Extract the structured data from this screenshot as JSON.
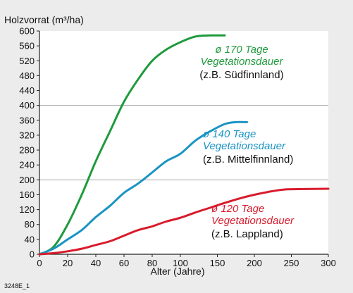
{
  "figure": {
    "code": "3248E_1"
  },
  "chart_data": {
    "type": "line",
    "title": "",
    "ylabel": "Holzvorrat (m³/ha)",
    "xlabel": "Alter (Jahre)",
    "xlim": [
      0,
      300
    ],
    "ylim": [
      0,
      600
    ],
    "x_ticks": [
      0,
      20,
      40,
      60,
      80,
      100,
      150,
      200,
      250,
      300
    ],
    "x_tick_labels": [
      "0",
      "20",
      "40",
      "60",
      "80",
      "100",
      "150",
      "200",
      "250",
      "300"
    ],
    "y_ticks": [
      0,
      40,
      80,
      120,
      160,
      200,
      240,
      280,
      320,
      360,
      400,
      440,
      480,
      520,
      560,
      600
    ],
    "y_tick_labels": [
      "0",
      "40",
      "80",
      "120",
      "160",
      "200",
      "240",
      "280",
      "320",
      "360",
      "400",
      "440",
      "480",
      "520",
      "560",
      "600"
    ],
    "grid": {
      "horizontal_lines_at": [
        200,
        400
      ]
    },
    "x_scale": "piecewise: 0-100 expanded, 100-300 compressed",
    "series": [
      {
        "name": "ø 170 Tage Vegetationsdauer",
        "note": "(z.B. Südfinnland)",
        "color": "#1f9a3d",
        "x": [
          0,
          10,
          20,
          30,
          40,
          50,
          60,
          70,
          80,
          90,
          100,
          120,
          140,
          160
        ],
        "y": [
          0,
          20,
          80,
          160,
          250,
          330,
          410,
          470,
          520,
          550,
          570,
          585,
          588,
          588
        ]
      },
      {
        "name": "ø 140 Tage Vegetationsdauer",
        "note": "(z.B. Mittelfinnland)",
        "color": "#1a94c4",
        "x": [
          0,
          10,
          20,
          30,
          40,
          50,
          60,
          70,
          80,
          90,
          100,
          120,
          140,
          160,
          175,
          190
        ],
        "y": [
          0,
          15,
          40,
          65,
          100,
          130,
          165,
          190,
          220,
          250,
          270,
          305,
          330,
          350,
          355,
          355
        ]
      },
      {
        "name": "ø 120 Tage Vegetationsdauer",
        "note": "(z.B. Lappland)",
        "color": "#d81b2c",
        "x": [
          0,
          10,
          20,
          30,
          40,
          50,
          60,
          70,
          80,
          90,
          100,
          120,
          140,
          160,
          180,
          200,
          220,
          240,
          260,
          300
        ],
        "y": [
          0,
          3,
          8,
          15,
          25,
          35,
          50,
          65,
          75,
          88,
          98,
          112,
          125,
          138,
          150,
          160,
          168,
          174,
          175,
          176
        ]
      }
    ]
  }
}
